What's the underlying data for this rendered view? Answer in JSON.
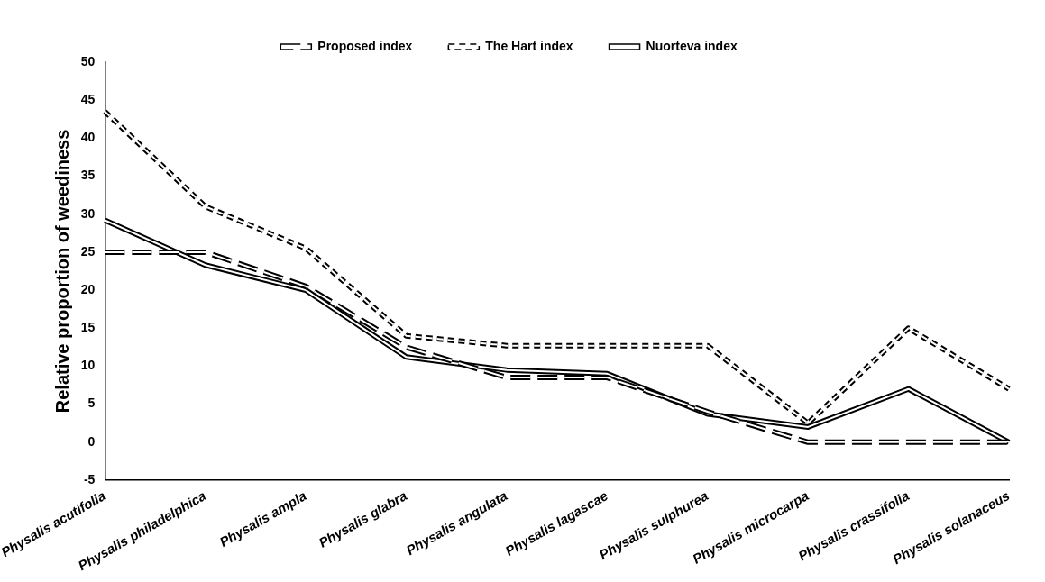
{
  "chart_data": {
    "type": "line",
    "ylabel": "Relative proportion of weediness",
    "categories": [
      "Physalis acutifolia",
      "Physalis philadelphica",
      "Physalis ampla",
      "Physalis glabra",
      "Physalis angulata",
      "Physalis lagascae",
      "Physalis sulphurea",
      "Physalis microcarpa",
      "Physalis crassifolia",
      "Physalis solanaceus"
    ],
    "series": [
      {
        "name": "Proposed index",
        "color": "#000000",
        "line_style": "dashed",
        "values": [
          25,
          25,
          20.5,
          12.5,
          8.5,
          8.5,
          4,
          0,
          0,
          0
        ]
      },
      {
        "name": "The Hart index",
        "color": "#000000",
        "line_style": "dotted",
        "values": [
          43.5,
          31,
          25.5,
          14,
          12.7,
          12.7,
          12.7,
          2.5,
          15,
          7
        ]
      },
      {
        "name": "Nuorteva index",
        "color": "#000000",
        "line_style": "solid",
        "values": [
          29.2,
          23.3,
          20,
          11.2,
          9.5,
          9,
          3.7,
          2,
          7,
          0
        ]
      }
    ],
    "ylim": [
      -5,
      50
    ],
    "yticks": [
      -5,
      0,
      5,
      10,
      15,
      20,
      25,
      30,
      35,
      40,
      45,
      50
    ],
    "grid": false,
    "legend": "top",
    "marker": "none"
  }
}
